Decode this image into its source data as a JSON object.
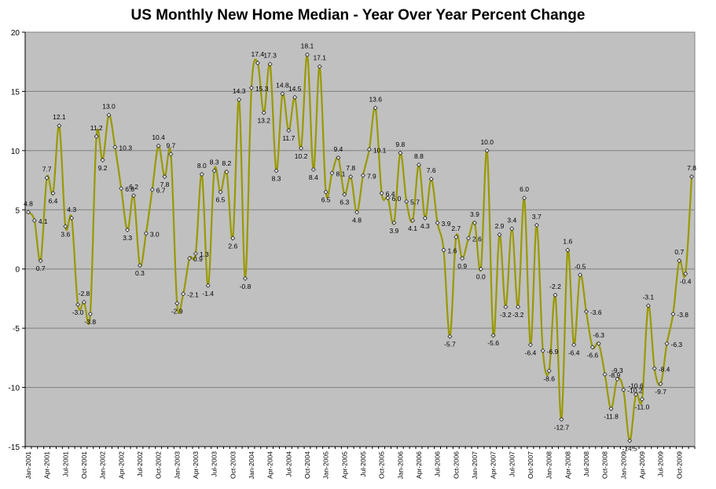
{
  "chart_data": {
    "type": "line",
    "title": "US Monthly New Home Median - Year Over Year Percent Change",
    "xlabel": "",
    "ylabel": "",
    "ylim": [
      -15,
      20
    ],
    "yticks": [
      -15,
      -10,
      -5,
      0,
      5,
      10,
      15,
      20
    ],
    "grid": true,
    "legend": "none",
    "colors": {
      "plot_background": "#c0c0c0",
      "line": "#999900",
      "marker": "#333333",
      "grid": "#808080"
    },
    "x_tick_labels": [
      "Jan-2001",
      "Apr-2001",
      "Jul-2001",
      "Oct-2001",
      "Jan-2002",
      "Apr-2002",
      "Jul-2002",
      "Oct-2002",
      "Jan-2003",
      "Apr-2003",
      "Jul-2003",
      "Oct-2003",
      "Jan-2004",
      "Apr-2004",
      "Jul-2004",
      "Oct-2004",
      "Jan-2005",
      "Apr-2005",
      "Jul-2005",
      "Oct-2005",
      "Jan-2006",
      "Apr-2006",
      "Jul-2006",
      "Oct-2006",
      "Jan-2007",
      "Apr-2007",
      "Jul-2007",
      "Oct-2007",
      "Jan-2008",
      "Apr-2008",
      "Jul-2008",
      "Oct-2008",
      "Jan-2009",
      "Apr-2009",
      "Jul-2009",
      "Oct-2009"
    ],
    "values": [
      4.8,
      4.1,
      0.7,
      7.7,
      6.4,
      12.1,
      3.6,
      4.3,
      -3.0,
      -2.8,
      -3.8,
      11.2,
      9.2,
      13.0,
      10.3,
      6.8,
      3.3,
      6.2,
      0.3,
      3.0,
      6.7,
      10.4,
      7.8,
      9.7,
      -2.9,
      -2.1,
      0.9,
      1.3,
      8.0,
      -1.4,
      8.3,
      6.5,
      8.2,
      2.6,
      14.3,
      -0.8,
      15.3,
      17.4,
      13.2,
      17.3,
      8.3,
      14.8,
      11.7,
      14.5,
      10.2,
      18.1,
      8.4,
      17.1,
      6.5,
      8.1,
      9.4,
      6.3,
      7.8,
      4.8,
      7.9,
      10.1,
      13.6,
      6.4,
      6.0,
      3.9,
      9.8,
      5.7,
      4.1,
      8.8,
      4.3,
      7.6,
      3.9,
      1.6,
      -5.7,
      2.7,
      0.9,
      2.6,
      3.9,
      0.0,
      10.0,
      -5.6,
      2.9,
      -3.2,
      3.4,
      -3.2,
      6.0,
      -6.4,
      3.7,
      -6.9,
      -8.6,
      -2.2,
      -12.7,
      1.6,
      -6.4,
      -0.5,
      -3.6,
      -6.6,
      -6.3,
      -8.9,
      -11.8,
      -9.3,
      -10.2,
      -14.5,
      -10.6,
      -11.0,
      -3.1,
      -8.4,
      -9.7,
      -6.3,
      -3.8,
      0.7,
      -0.4,
      7.8
    ],
    "data_labels": [
      "4.8",
      "4.1",
      "0.7",
      "7.7",
      "6.4",
      "12.1",
      "3.6",
      "4.3",
      "-3.0",
      "-2.8",
      "-3.8",
      "11.2",
      "9.2",
      "13.0",
      "10.3",
      "6.8",
      "3.3",
      "6.2",
      "0.3",
      "3.0",
      "6.7",
      "10.4",
      "7.8",
      "9.7",
      "-2.9",
      "-2.1",
      "0.9",
      "1.3",
      "8.0",
      "-1.4",
      "8.3",
      "6.5",
      "8.2",
      "2.6",
      "14.3",
      "-0.8",
      "15.3",
      "17.4",
      "13.2",
      "17.3",
      "8.3",
      "14.8",
      "11.7",
      "14.5",
      "10.2",
      "18.1",
      "8.4",
      "17.1",
      "6.5",
      "8.1",
      "9.4",
      "6.3",
      "7.8",
      "4.8",
      "7.9",
      "10.1",
      "13.6",
      "6.4",
      "6.0",
      "3.9",
      "9.8",
      "5.7",
      "4.1",
      "8.8",
      "4.3",
      "7.6",
      "3.9",
      "1.6",
      "-5.7",
      "2.7",
      "0.9",
      "2.6",
      "3.9",
      "0.0",
      "10.0",
      "-5.6",
      "2.9",
      "-3.2",
      "3.4",
      "-3.2",
      "6.0",
      "-6.4",
      "3.7",
      "-6.9",
      "-8.6",
      "-2.2",
      "-12.7",
      "1.6",
      "-6.4",
      "-0.5",
      "-3.6",
      "-6.6",
      "-6.3",
      "-8.9",
      "-11.8",
      "-9.3",
      "-10.2",
      "-14.5",
      "-10.6",
      "-11.0",
      "-3.1",
      "-8.4",
      "-9.7",
      "-6.3",
      "-3.8",
      "0.7",
      "-0.4",
      "7.8"
    ]
  }
}
